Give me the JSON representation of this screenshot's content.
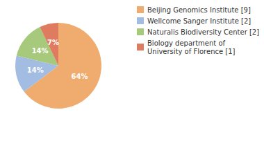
{
  "chart_data": {
    "type": "pie",
    "categories": [
      "Beijing Genomics Institute [9]",
      "Wellcome Sanger Institute [2]",
      "Naturalis Biodiversity Center [2]",
      "Biology department of\nUniversity of Florence [1]"
    ],
    "values": [
      64,
      14,
      14,
      7
    ],
    "value_labels": [
      "64%",
      "14%",
      "14%",
      "7%"
    ],
    "colors": [
      "#f0ab6e",
      "#a3bce2",
      "#a6c97b",
      "#df7b5f"
    ],
    "data_labels": true,
    "legend": "top-right"
  }
}
